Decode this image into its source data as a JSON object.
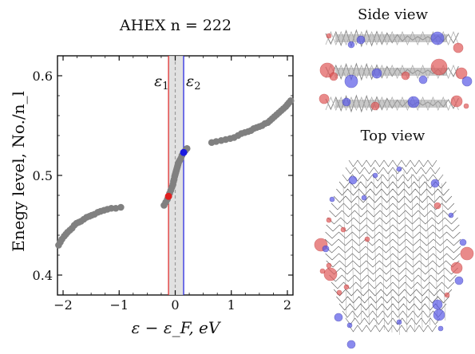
{
  "chart_data": {
    "type": "scatter",
    "title": "AHEX n = 222",
    "xlabel": "ε − ε_F, eV",
    "ylabel": "Enegy level, No./n_l",
    "xlim": [
      -2.1,
      2.1
    ],
    "ylim": [
      0.38,
      0.62
    ],
    "xticks": [
      -2,
      -1,
      0,
      1,
      2
    ],
    "yticks": [
      0.4,
      0.5,
      0.6
    ],
    "xtick_labels": [
      "−2",
      "−1",
      "0",
      "1",
      "2"
    ],
    "ytick_labels": [
      "0.4",
      "0.5",
      "0.6"
    ],
    "grid": false,
    "legend": "none",
    "colors": {
      "points": "#808080",
      "eps1": "#e02020",
      "eps2": "#1a1ae0",
      "band_fill": "#d9d9d9",
      "fermi_line": "#9a9a9a"
    },
    "vlines": [
      {
        "label": "ε1",
        "x": -0.12
      },
      {
        "label": "ε2",
        "x": 0.15
      }
    ],
    "fermi_x": 0.0,
    "highlight_points": [
      {
        "label": "ε1",
        "x": -0.12,
        "y": 0.479
      },
      {
        "label": "ε2",
        "x": 0.15,
        "y": 0.523
      }
    ],
    "series": [
      {
        "x": [
          -2.08,
          -2.05,
          -2.02,
          -1.98,
          -1.95,
          -1.92,
          -1.88,
          -1.84,
          -1.8,
          -1.76,
          -1.72,
          -1.68,
          -1.63,
          -1.58,
          -1.53,
          -1.49,
          -1.44,
          -1.38,
          -1.33,
          -1.27,
          -1.21,
          -1.14,
          -1.06,
          -0.97
        ],
        "y": [
          0.43,
          0.433,
          0.436,
          0.439,
          0.441,
          0.443,
          0.445,
          0.447,
          0.45,
          0.452,
          0.453,
          0.454,
          0.456,
          0.458,
          0.459,
          0.46,
          0.461,
          0.463,
          0.464,
          0.465,
          0.466,
          0.467,
          0.467,
          0.468
        ]
      },
      {
        "x": [
          -0.2,
          -0.17,
          -0.14,
          -0.12,
          -0.1,
          -0.08,
          -0.06,
          -0.04,
          -0.03,
          -0.02,
          -0.01,
          0.0,
          0.01,
          0.02,
          0.03,
          0.04,
          0.05,
          0.06,
          0.08,
          0.1,
          0.12,
          0.15,
          0.18,
          0.21
        ],
        "y": [
          0.47,
          0.473,
          0.476,
          0.479,
          0.482,
          0.485,
          0.488,
          0.491,
          0.494,
          0.496,
          0.499,
          0.501,
          0.503,
          0.505,
          0.507,
          0.509,
          0.511,
          0.513,
          0.515,
          0.517,
          0.52,
          0.523,
          0.525,
          0.527
        ]
      },
      {
        "x": [
          0.65,
          0.73,
          0.82,
          0.9,
          0.98,
          1.05,
          1.12,
          1.18,
          1.24,
          1.3,
          1.35,
          1.4,
          1.45,
          1.5,
          1.55,
          1.6,
          1.65,
          1.69,
          1.73,
          1.77,
          1.81,
          1.85,
          1.89,
          1.93,
          1.97,
          2.0,
          2.03,
          2.06
        ],
        "y": [
          0.533,
          0.534,
          0.535,
          0.536,
          0.537,
          0.538,
          0.54,
          0.542,
          0.543,
          0.544,
          0.545,
          0.547,
          0.548,
          0.549,
          0.55,
          0.552,
          0.553,
          0.555,
          0.557,
          0.559,
          0.561,
          0.563,
          0.565,
          0.567,
          0.569,
          0.571,
          0.573,
          0.575
        ]
      }
    ]
  },
  "panels": {
    "side_view_title": "Side view",
    "top_view_title": "Top view"
  },
  "colors": {
    "red_atom": "#e05a5a",
    "blue_atom": "#5a5ae8",
    "ribbon": "#8a8a8a"
  }
}
